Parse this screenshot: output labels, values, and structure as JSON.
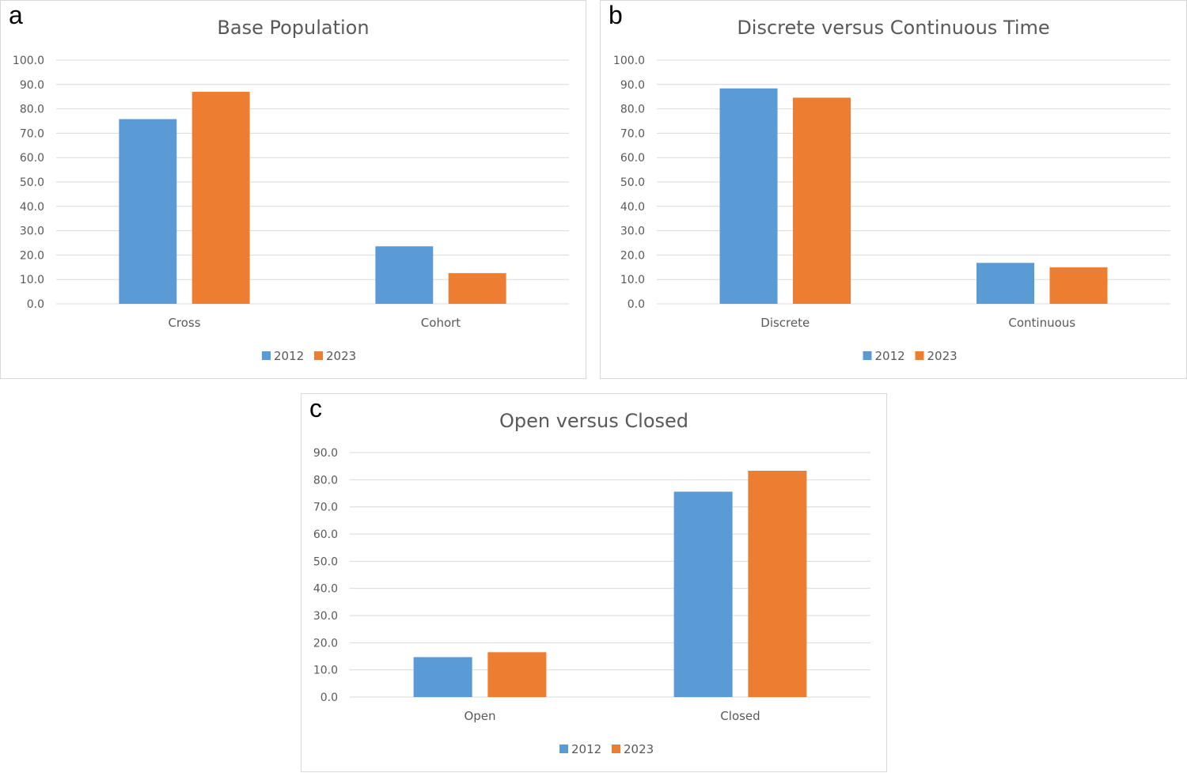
{
  "colors": {
    "s2012": "#5b9bd5",
    "s2023": "#ed7d31",
    "grid": "#d9d9d9",
    "text": "#595959",
    "title": "#595959"
  },
  "chart_data": [
    {
      "panel": "a",
      "type": "bar",
      "title": "Base Population",
      "categories": [
        "Cross",
        "Cohort"
      ],
      "series": [
        {
          "name": "2012",
          "values": [
            75.8,
            23.6
          ]
        },
        {
          "name": "2023",
          "values": [
            87.0,
            12.6
          ]
        }
      ],
      "ylim": [
        0,
        100
      ],
      "yticks": [
        "0.0",
        "10.0",
        "20.0",
        "30.0",
        "40.0",
        "50.0",
        "60.0",
        "70.0",
        "80.0",
        "90.0",
        "100.0"
      ],
      "grid": true,
      "legend": "bottom"
    },
    {
      "panel": "b",
      "type": "bar",
      "title": "Discrete versus Continuous Time",
      "categories": [
        "Discrete",
        "Continuous"
      ],
      "series": [
        {
          "name": "2012",
          "values": [
            88.4,
            16.8
          ]
        },
        {
          "name": "2023",
          "values": [
            84.6,
            15.0
          ]
        }
      ],
      "ylim": [
        0,
        100
      ],
      "yticks": [
        "0.0",
        "10.0",
        "20.0",
        "30.0",
        "40.0",
        "50.0",
        "60.0",
        "70.0",
        "80.0",
        "90.0",
        "100.0"
      ],
      "grid": true,
      "legend": "bottom"
    },
    {
      "panel": "c",
      "type": "bar",
      "title": "Open versus Closed",
      "categories": [
        "Open",
        "Closed"
      ],
      "series": [
        {
          "name": "2012",
          "values": [
            14.7,
            75.6
          ]
        },
        {
          "name": "2023",
          "values": [
            16.5,
            83.3
          ]
        }
      ],
      "ylim": [
        0,
        90
      ],
      "yticks": [
        "0.0",
        "10.0",
        "20.0",
        "30.0",
        "40.0",
        "50.0",
        "60.0",
        "70.0",
        "80.0",
        "90.0"
      ],
      "grid": true,
      "legend": "bottom"
    }
  ]
}
